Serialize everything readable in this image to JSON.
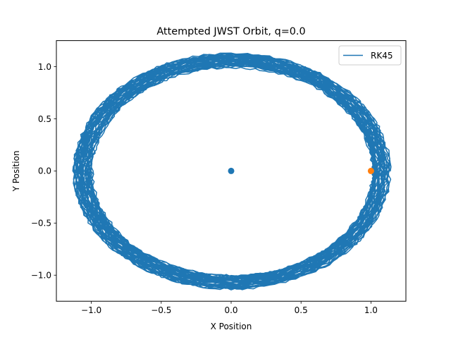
{
  "chart_data": {
    "type": "line",
    "title": "Attempted JWST Orbit, q=0.0",
    "xlabel": "X Position",
    "ylabel": "Y Position",
    "xlim": [
      -1.25,
      1.25
    ],
    "ylim": [
      -1.25,
      1.25
    ],
    "xticks": [
      -1.0,
      -0.5,
      0.0,
      0.5,
      1.0
    ],
    "xtick_labels": [
      "−1.0",
      "−0.5",
      "0.0",
      "0.5",
      "1.0"
    ],
    "yticks": [
      -1.0,
      -0.5,
      0.0,
      0.5,
      1.0
    ],
    "ytick_labels": [
      "−1.0",
      "−0.5",
      "0.0",
      "0.5",
      "1.0"
    ],
    "grid": false,
    "legend": {
      "placement": "top-right",
      "entries": [
        "RK45"
      ]
    },
    "series": [
      {
        "name": "RK45",
        "color": "#1f77b4",
        "description_shape": "many overlapping near-circular orbit loops",
        "radius_min": 0.98,
        "radius_max": 1.16,
        "center": [
          0.0,
          0.0
        ]
      }
    ],
    "points": [
      {
        "x": 0.0,
        "y": 0.0,
        "color": "#1f77b4"
      },
      {
        "x": 1.0,
        "y": 0.0,
        "color": "#ff7f0e"
      }
    ]
  }
}
